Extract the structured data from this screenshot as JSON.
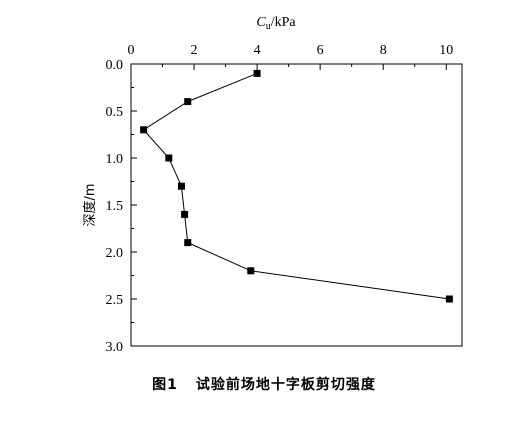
{
  "chart_data": {
    "type": "line",
    "x_axis": {
      "label_main": "C",
      "label_sub": "u",
      "label_unit": "/kPa",
      "position": "top",
      "range": [
        0,
        10.5
      ],
      "ticks": [
        0,
        2,
        4,
        6,
        8,
        10
      ],
      "tick_labels": [
        "0",
        "2",
        "4",
        "6",
        "8",
        "10"
      ]
    },
    "y_axis": {
      "label": "深度/m",
      "inverted": true,
      "range": [
        0,
        3.0
      ],
      "ticks": [
        0.0,
        0.5,
        1.0,
        1.5,
        2.0,
        2.5,
        3.0
      ],
      "tick_labels": [
        "0.0",
        "0.5",
        "1.0",
        "1.5",
        "2.0",
        "2.5",
        "3.0"
      ]
    },
    "series": [
      {
        "marker": "square",
        "color": "#000000",
        "points": [
          {
            "x": 4.0,
            "y": 0.1
          },
          {
            "x": 1.8,
            "y": 0.4
          },
          {
            "x": 0.4,
            "y": 0.7
          },
          {
            "x": 1.2,
            "y": 1.0
          },
          {
            "x": 1.6,
            "y": 1.3
          },
          {
            "x": 1.7,
            "y": 1.6
          },
          {
            "x": 1.8,
            "y": 1.9
          },
          {
            "x": 3.8,
            "y": 2.2
          },
          {
            "x": 10.1,
            "y": 2.5
          }
        ]
      }
    ],
    "grid": false
  },
  "caption": {
    "figure_number": "图1",
    "title": "试验前场地十字板剪切强度"
  }
}
